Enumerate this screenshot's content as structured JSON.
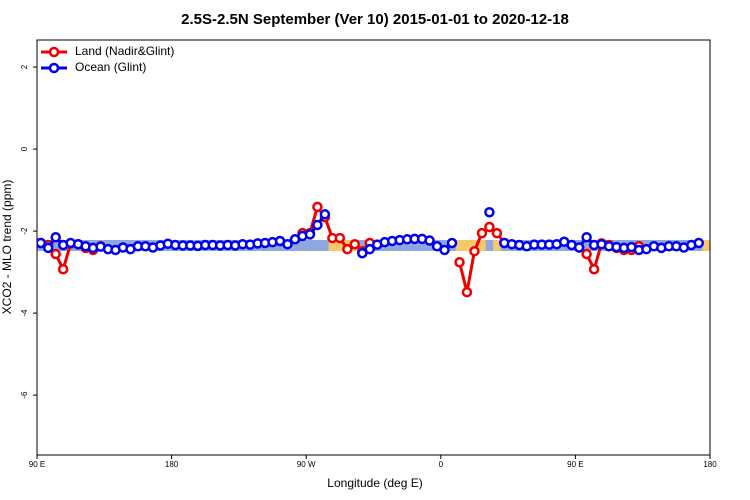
{
  "chart_data": {
    "type": "line",
    "title": "2.5S-2.5N September (Ver 10)   2015-01-01 to 2020-12-18",
    "x_label": "Longitude (deg E)",
    "y_label": "XCO2 - MLO trend (ppm)",
    "x": [
      92.5,
      97.5,
      102.5,
      107.5,
      112.5,
      117.5,
      122.5,
      127.5,
      132.5,
      137.5,
      142.5,
      147.5,
      152.5,
      157.5,
      162.5,
      167.5,
      172.5,
      177.5,
      182.5,
      187.5,
      192.5,
      197.5,
      202.5,
      207.5,
      212.5,
      217.5,
      222.5,
      227.5,
      232.5,
      237.5,
      242.5,
      247.5,
      252.5,
      257.5,
      262.5,
      267.5,
      272.5,
      277.5,
      282.5,
      287.5,
      292.5,
      297.5,
      302.5,
      307.5,
      312.5,
      317.5,
      322.5,
      327.5,
      332.5,
      337.5,
      342.5,
      347.5,
      352.5,
      357.5,
      362.5,
      367.5,
      372.5,
      377.5,
      382.5,
      387.5,
      392.5,
      397.5,
      402.5,
      407.5,
      412.5,
      417.5,
      422.5,
      427.5,
      432.5,
      437.5,
      442.5,
      447.5,
      452.5,
      457.5,
      462.5,
      467.5,
      472.5,
      477.5,
      482.5,
      487.5,
      492.5,
      497.5,
      502.5,
      507.5,
      512.5,
      517.5,
      522.5,
      527.5,
      532.5,
      537.5
    ],
    "series": [
      {
        "name": "Land (Nadir&Glint)",
        "color": "#ee0000",
        "values": [
          -2.29,
          -2.34,
          -2.56,
          -2.93,
          -2.3,
          -2.32,
          -2.41,
          -2.46,
          -2.37,
          null,
          null,
          null,
          null,
          null,
          null,
          null,
          null,
          null,
          null,
          null,
          null,
          null,
          null,
          null,
          null,
          null,
          null,
          null,
          null,
          null,
          null,
          null,
          null,
          null,
          null,
          -2.05,
          -2.05,
          -1.41,
          -1.66,
          -2.17,
          -2.17,
          -2.44,
          -2.32,
          -2.49,
          -2.29,
          null,
          null,
          null,
          null,
          null,
          null,
          null,
          null,
          null,
          null,
          null,
          -2.76,
          -3.49,
          -2.49,
          -2.05,
          -1.9,
          -2.05,
          -2.29,
          null,
          null,
          null,
          null,
          null,
          null,
          null,
          null,
          null,
          null,
          -2.56,
          -2.93,
          -2.3,
          -2.34,
          -2.41,
          -2.46,
          -2.46,
          -2.37,
          null,
          null,
          null,
          null,
          null,
          null,
          null,
          null,
          null
        ]
      },
      {
        "name": "Ocean (Glint)",
        "color": "#0000ee",
        "values": [
          -2.29,
          -2.41,
          -2.15,
          -2.34,
          -2.29,
          -2.32,
          -2.37,
          -2.41,
          -2.38,
          -2.44,
          -2.46,
          -2.4,
          -2.44,
          -2.37,
          -2.37,
          -2.4,
          -2.35,
          -2.31,
          -2.34,
          -2.35,
          -2.35,
          -2.36,
          -2.34,
          -2.34,
          -2.35,
          -2.34,
          -2.35,
          -2.32,
          -2.33,
          -2.3,
          -2.29,
          -2.27,
          -2.24,
          -2.32,
          -2.2,
          -2.12,
          -2.08,
          -1.85,
          -1.59,
          null,
          null,
          null,
          null,
          -2.54,
          -2.44,
          -2.33,
          -2.27,
          -2.24,
          -2.22,
          -2.2,
          -2.19,
          -2.19,
          -2.23,
          -2.37,
          -2.46,
          -2.29,
          null,
          null,
          null,
          null,
          -1.54,
          null,
          -2.29,
          -2.32,
          -2.34,
          -2.37,
          -2.33,
          -2.33,
          -2.33,
          -2.32,
          -2.26,
          -2.34,
          -2.4,
          -2.15,
          -2.34,
          -2.32,
          -2.37,
          -2.39,
          -2.41,
          -2.39,
          -2.46,
          -2.44,
          -2.37,
          -2.41,
          -2.37,
          -2.37,
          -2.4,
          -2.34,
          -2.29,
          null
        ]
      }
    ],
    "xlim": [
      90,
      540
    ],
    "xticks": [
      {
        "value": 90,
        "label": "90 E"
      },
      180,
      {
        "value": 270,
        "label": "90 W"
      },
      {
        "value": 360,
        "label": "0"
      },
      {
        "value": 450,
        "label": "90 E"
      },
      {
        "value": 540,
        "label": "180"
      }
    ],
    "ylim": [
      -7.46,
      2.66
    ],
    "yticks": [
      -6,
      -4,
      -2,
      0,
      2
    ],
    "legend": "top-left",
    "grid": false
  }
}
